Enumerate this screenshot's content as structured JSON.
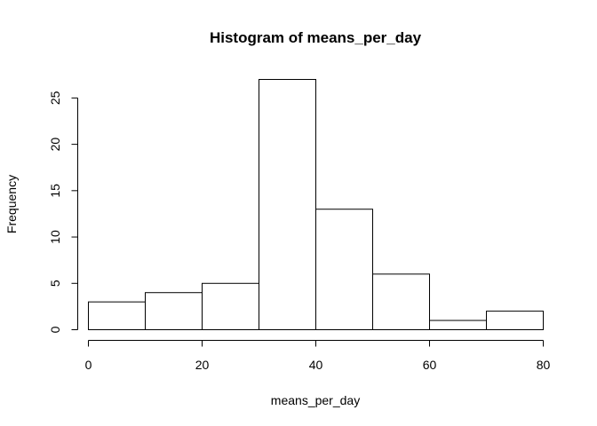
{
  "chart_data": {
    "type": "bar",
    "title": "Histogram of means_per_day",
    "xlabel": "means_per_day",
    "ylabel": "Frequency",
    "bins": [
      {
        "start": 0,
        "end": 10,
        "count": 3
      },
      {
        "start": 10,
        "end": 20,
        "count": 4
      },
      {
        "start": 20,
        "end": 30,
        "count": 5
      },
      {
        "start": 30,
        "end": 40,
        "count": 27
      },
      {
        "start": 40,
        "end": 50,
        "count": 13
      },
      {
        "start": 50,
        "end": 60,
        "count": 6
      },
      {
        "start": 60,
        "end": 70,
        "count": 1
      },
      {
        "start": 70,
        "end": 80,
        "count": 2
      }
    ],
    "xlim": [
      0,
      80
    ],
    "ylim": [
      0,
      27
    ],
    "x_ticks": [
      0,
      20,
      40,
      60,
      80
    ],
    "y_ticks": [
      0,
      5,
      10,
      15,
      20,
      25
    ],
    "x_tick_labels": [
      "0",
      "20",
      "40",
      "60",
      "80"
    ],
    "y_tick_labels": [
      "0",
      "5",
      "10",
      "15",
      "20",
      "25"
    ],
    "grid": false,
    "bar_fill": "#ffffff",
    "bar_stroke": "#000000"
  }
}
